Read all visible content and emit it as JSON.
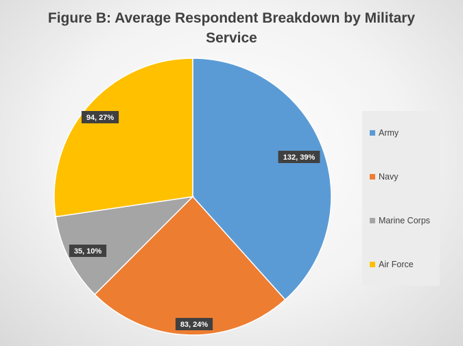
{
  "chart_data": {
    "type": "pie",
    "title": "Figure B: Average Respondent Breakdown by Military Service",
    "categories": [
      "Army",
      "Navy",
      "Marine Corps",
      "Air Force"
    ],
    "values": [
      132,
      83,
      35,
      94
    ],
    "data_labels": [
      "132, 39%",
      "83, 24%",
      "35, 10%",
      "94, 27%"
    ],
    "colors": [
      "#5b9bd5",
      "#ed7d31",
      "#a5a5a5",
      "#ffc000"
    ],
    "legend_position": "right",
    "start_angle": "12 o'clock, clockwise"
  }
}
